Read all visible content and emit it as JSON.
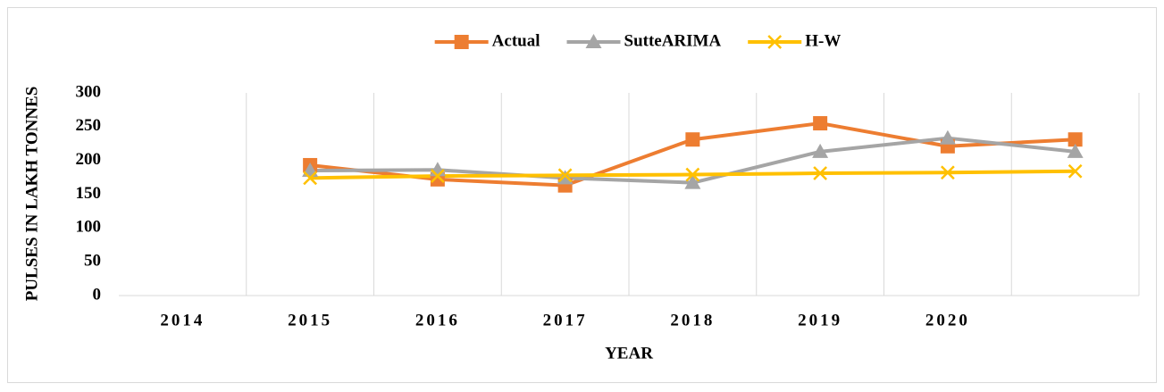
{
  "chart_data": {
    "type": "line",
    "x_label": "YEAR",
    "y_label": "PULSES IN LAKH TONNES",
    "categories": [
      "2014",
      "2015",
      "2016",
      "2017",
      "2018",
      "2019",
      "2020",
      null
    ],
    "series": [
      {
        "name": "Actual",
        "color": "#ed7d31",
        "marker": "square",
        "values": [
          null,
          193,
          172,
          163,
          231,
          255,
          221,
          231
        ]
      },
      {
        "name": "SutteARIMA",
        "color": "#a5a5a5",
        "marker": "triangle",
        "values": [
          null,
          185,
          186,
          174,
          167,
          213,
          233,
          213
        ]
      },
      {
        "name": "H-W",
        "color": "#ffc000",
        "marker": "x",
        "values": [
          null,
          174,
          177,
          178,
          179,
          181,
          182,
          184
        ]
      }
    ],
    "ylim": [
      0,
      300
    ],
    "yticks": [
      0,
      50,
      100,
      150,
      200,
      250,
      300
    ],
    "legend": "top",
    "grid": "vertical"
  }
}
